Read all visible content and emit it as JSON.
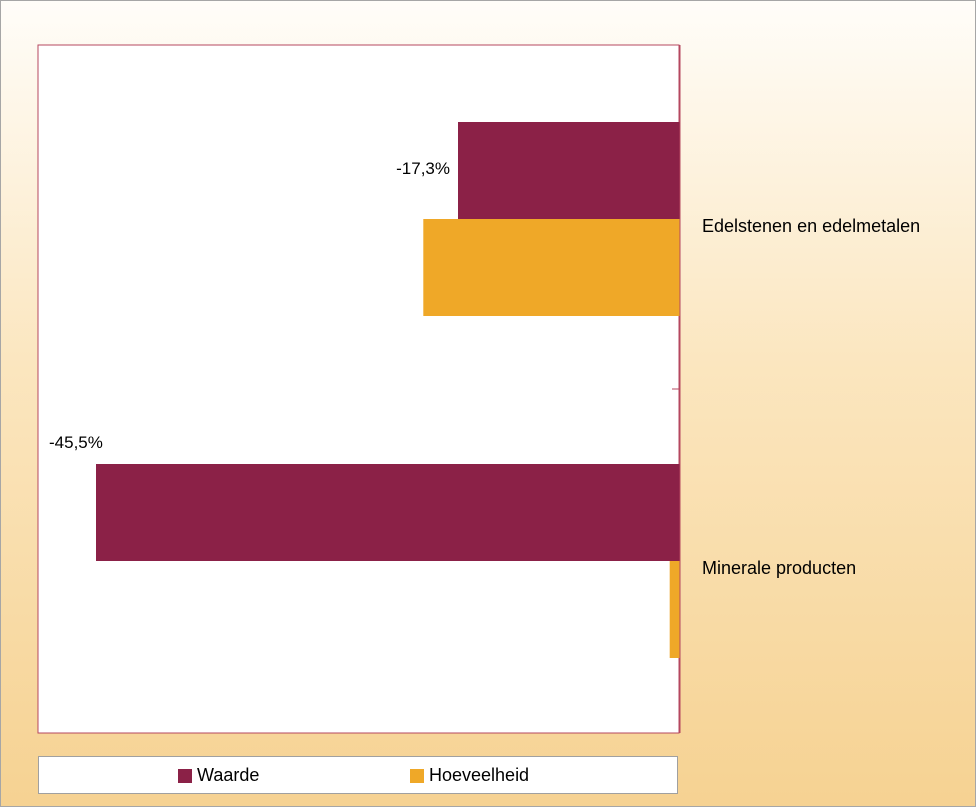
{
  "colors": {
    "waarde": "#8b2147",
    "hoeveelheid": "#efa828",
    "plot_border": "#b5475f"
  },
  "chart_data": {
    "type": "bar",
    "orientation": "horizontal",
    "categories": [
      "Edelstenen en edelmetalen",
      "Minerale producten"
    ],
    "series": [
      {
        "name": "Waarde",
        "values": [
          -17.3,
          -45.5
        ]
      },
      {
        "name": "Hoeveelheid",
        "values": [
          -20.0,
          -0.8
        ]
      }
    ],
    "data_labels": [
      {
        "series": "Waarde",
        "category": "Edelstenen en edelmetalen",
        "text": "-17,3%"
      },
      {
        "series": "Waarde",
        "category": "Minerale producten",
        "text": "-45,5%"
      }
    ],
    "xlim": [
      -50,
      0
    ],
    "legend_position": "bottom",
    "grid": false
  },
  "legend": {
    "items": [
      {
        "label": "Waarde"
      },
      {
        "label": "Hoeveelheid"
      }
    ]
  }
}
